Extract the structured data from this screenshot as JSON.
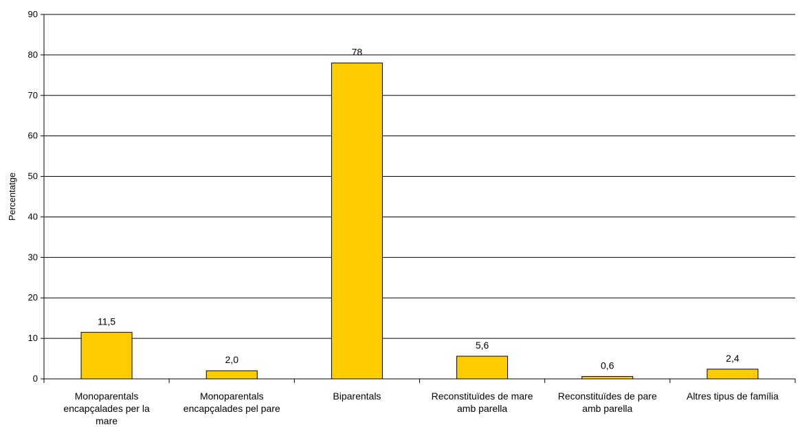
{
  "chart_data": {
    "type": "bar",
    "categories": [
      [
        "Monoparentals",
        "encapçalades per la",
        "mare"
      ],
      [
        "Monoparentals",
        "encapçalades pel pare"
      ],
      [
        "Biparentals"
      ],
      [
        "Reconstituïdes de mare",
        "amb parella"
      ],
      [
        "Reconstituïdes de pare",
        "amb parella"
      ],
      [
        "Altres tipus de família"
      ]
    ],
    "values": [
      11.5,
      2.0,
      78,
      5.6,
      0.6,
      2.4
    ],
    "data_labels": [
      "11,5",
      "2,0",
      "78",
      "5,6",
      "0,6",
      "2,4"
    ],
    "ylabel": "Percentatge",
    "ylim": [
      0,
      90
    ],
    "yticks": [
      "0",
      "10",
      "20",
      "30",
      "40",
      "50",
      "60",
      "70",
      "80",
      "90"
    ],
    "grid": true,
    "bar_color": "#FFCC00",
    "bar_edge_color": "#000000"
  }
}
